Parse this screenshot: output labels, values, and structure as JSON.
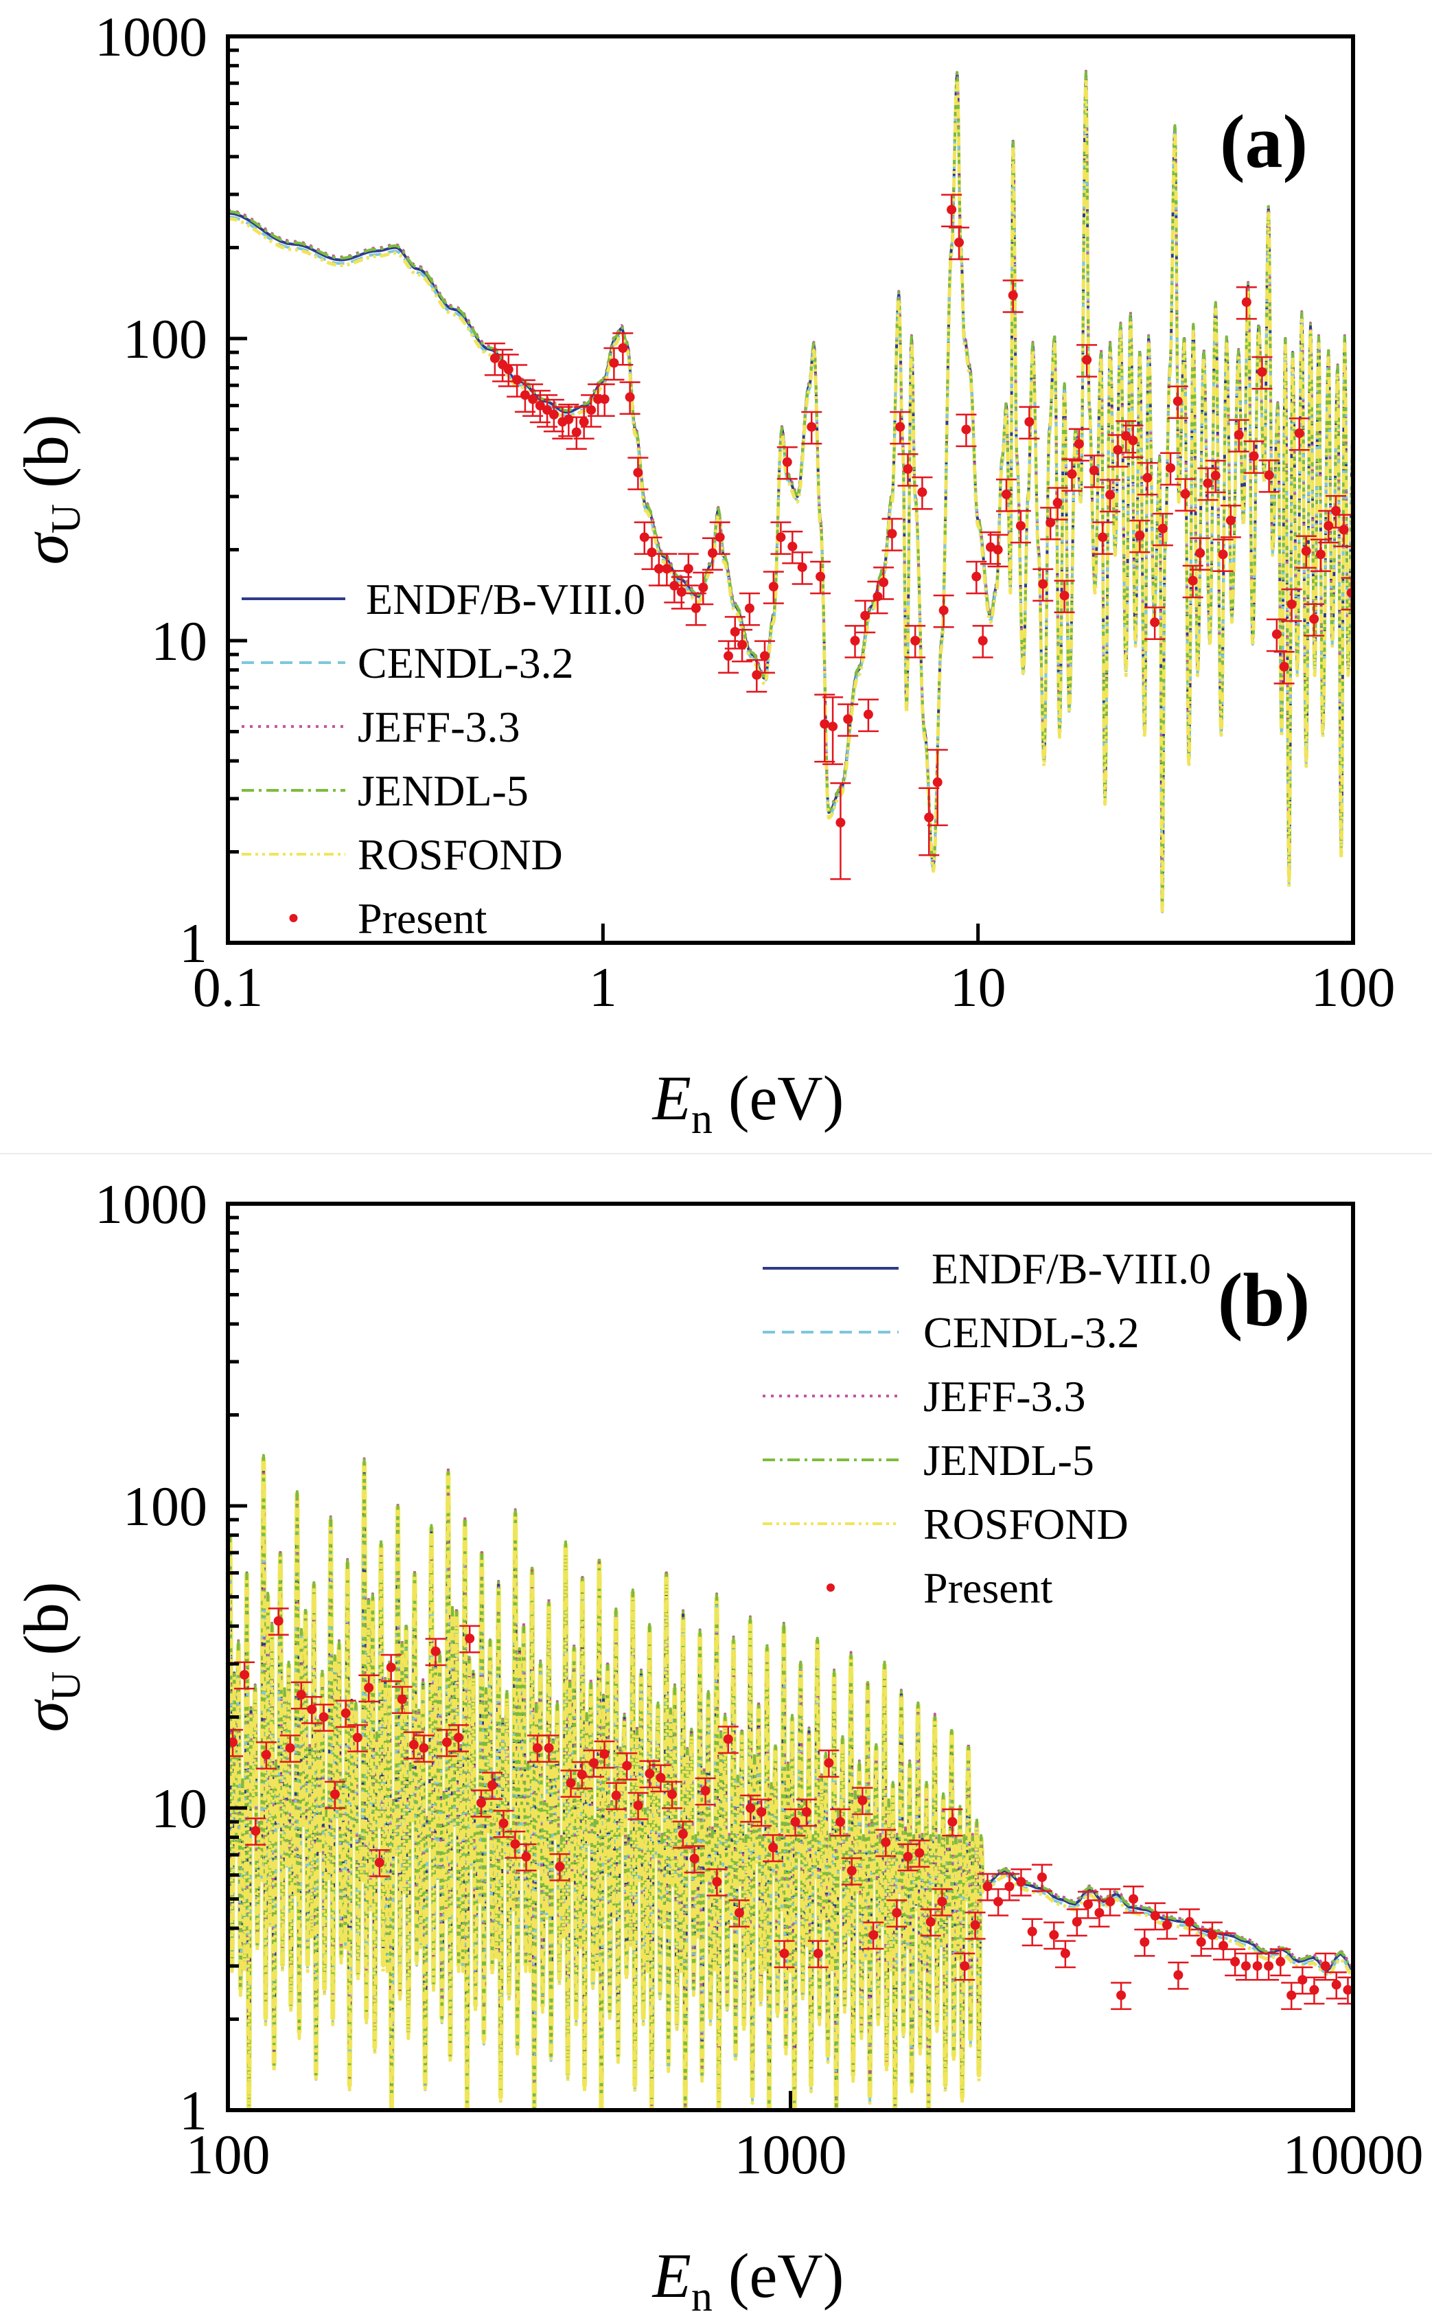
{
  "figure": {
    "panels": [
      "a",
      "b"
    ]
  },
  "chart_data": [
    {
      "type": "line",
      "panel_tag": "(a)",
      "xscale": "log",
      "yscale": "log",
      "xlim": [
        0.1,
        100
      ],
      "ylim": [
        1,
        1000
      ],
      "xticks": [
        0.1,
        1,
        10,
        100
      ],
      "xtick_labels": [
        "0.1",
        "1",
        "10",
        "100"
      ],
      "yticks": [
        1,
        10,
        100,
        1000
      ],
      "ytick_labels": [
        "1",
        "10",
        "100",
        "1000"
      ],
      "xlabel": {
        "main": "E",
        "sub": "n",
        "unit": " (eV)"
      },
      "ylabel": {
        "main": "σ",
        "sub": "U",
        "unit": " (b)"
      },
      "legend": {
        "position": "lower-left",
        "entries": [
          {
            "label": "ENDF/B-VIII.0",
            "style": "solid",
            "color": "#2e3a8c"
          },
          {
            "label": "CENDL-3.2",
            "style": "dashed",
            "color": "#7cc8dc"
          },
          {
            "label": "JEFF-3.3",
            "style": "dotted",
            "color": "#c4569c"
          },
          {
            "label": "JENDL-5",
            "style": "dashdot",
            "color": "#7cbc3c"
          },
          {
            "label": "ROSFOND",
            "style": "dashdotdot",
            "color": "#f2e45a"
          },
          {
            "label": "Present",
            "style": "marker",
            "color": "#e3151d"
          }
        ]
      },
      "library_curve": {
        "x": [
          0.1,
          0.15,
          0.2,
          0.25,
          0.28,
          0.32,
          0.4,
          0.5,
          0.6,
          0.7,
          0.8,
          0.9,
          1.0,
          1.08,
          1.12,
          1.16,
          1.22,
          1.3,
          1.45,
          1.6,
          1.8,
          1.95,
          2.03,
          2.1,
          2.25,
          2.5,
          2.7,
          2.85,
          3.0,
          3.1,
          3.3,
          3.55,
          3.65,
          3.8,
          4.0,
          4.3,
          4.8,
          5.2,
          5.6,
          5.9,
          6.15,
          6.3,
          6.45,
          6.65,
          6.8,
          7.2,
          7.6,
          8.0,
          8.5,
          8.8,
          9.0,
          9.2,
          9.5,
          10,
          10.8,
          11.2,
          11.6,
          11.9,
          12.2,
          12.4,
          12.7,
          13.2,
          13.6,
          14,
          14.5,
          15,
          15.5,
          16,
          16.5,
          17,
          17.5,
          18.2,
          18.8,
          19.4,
          19.8,
          20.5,
          21.3,
          21.8,
          22.5,
          23.2,
          24,
          24.8,
          25.5,
          26.3,
          27,
          27.8,
          28.5,
          29.5,
          30.5,
          31,
          31.5,
          32.5,
          33.5,
          34.3,
          35.5,
          36.5,
          37.5,
          38.5,
          40,
          41.5,
          43,
          44.5,
          46,
          47.5,
          49.5,
          51,
          52.5,
          54,
          56,
          58,
          59.5,
          61,
          63,
          64.5,
          66,
          67.5,
          69,
          71,
          73,
          75,
          77,
          79,
          81,
          83,
          86,
          88,
          91,
          93,
          95,
          97,
          100
        ],
        "y": [
          260,
          205,
          182,
          195,
          200,
          170,
          125,
          92,
          72,
          62,
          57,
          60,
          72,
          100,
          108,
          95,
          50,
          28,
          19,
          16,
          14,
          18,
          27,
          19,
          13,
          9,
          7.5,
          12,
          50,
          35,
          30,
          70,
          95,
          25,
          2.7,
          3.2,
          8,
          13,
          17,
          30,
          140,
          45,
          6,
          100,
          30,
          5,
          1.8,
          10,
          200,
          750,
          200,
          100,
          80,
          25,
          12,
          15,
          40,
          60,
          15,
          450,
          40,
          8,
          30,
          95,
          20,
          4,
          50,
          100,
          5,
          70,
          6,
          50,
          30,
          750,
          60,
          15,
          90,
          3,
          95,
          20,
          110,
          8,
          120,
          10,
          90,
          5,
          100,
          12,
          40,
          1.3,
          20,
          80,
          500,
          30,
          100,
          4,
          110,
          8,
          90,
          10,
          130,
          5,
          100,
          12,
          90,
          25,
          150,
          10,
          110,
          35,
          270,
          20,
          60,
          5,
          100,
          1.6,
          90,
          8,
          120,
          4,
          110,
          8,
          100,
          5,
          90,
          10,
          80,
          2,
          100,
          8,
          50
        ]
      },
      "present": {
        "x": [
          0.515,
          0.54,
          0.56,
          0.59,
          0.62,
          0.65,
          0.68,
          0.71,
          0.74,
          0.78,
          0.81,
          0.85,
          0.89,
          0.93,
          0.97,
          1.01,
          1.07,
          1.13,
          1.18,
          1.24,
          1.29,
          1.35,
          1.41,
          1.48,
          1.55,
          1.62,
          1.69,
          1.77,
          1.85,
          1.96,
          2.05,
          2.16,
          2.25,
          2.35,
          2.46,
          2.57,
          2.7,
          2.85,
          2.98,
          3.1,
          3.2,
          3.4,
          3.6,
          3.8,
          3.9,
          4.1,
          4.3,
          4.5,
          4.7,
          5.0,
          5.1,
          5.4,
          5.6,
          5.9,
          6.2,
          6.5,
          6.8,
          7.1,
          7.4,
          7.8,
          8.1,
          8.5,
          8.9,
          9.3,
          9.9,
          10.3,
          10.8,
          11.3,
          11.9,
          12.4,
          13.0,
          13.7,
          14.9,
          15.6,
          16.3,
          17.0,
          17.8,
          18.6,
          19.5,
          20.4,
          21.5,
          22.5,
          23.6,
          24.8,
          25.9,
          27.0,
          28.3,
          29.6,
          31.1,
          32.6,
          34.1,
          35.7,
          37.4,
          39.1,
          41,
          43,
          45,
          47.2,
          49.6,
          52,
          54.4,
          57.2,
          59.7,
          62.6,
          65.5,
          68.6,
          71.9,
          75,
          78.7,
          82,
          86,
          90,
          94.5,
          99
        ],
        "y": [
          86,
          82,
          79,
          73,
          65,
          63,
          60,
          58,
          56,
          53,
          54,
          49,
          53,
          58,
          63,
          63,
          83,
          93,
          64,
          36,
          22,
          19.6,
          17.3,
          17.3,
          15.2,
          14.5,
          17.3,
          12.8,
          15,
          19.5,
          22,
          8.9,
          10.7,
          9.7,
          12.8,
          7.7,
          8.9,
          15.1,
          22,
          39,
          20.5,
          17.5,
          51,
          16.3,
          5.3,
          5.2,
          2.5,
          5.5,
          10,
          12.1,
          5.7,
          14,
          15.6,
          22.6,
          51,
          37,
          10,
          31,
          2.6,
          3.4,
          12.6,
          267,
          208,
          50,
          16.3,
          10,
          20.4,
          20,
          30.5,
          139,
          24,
          53,
          15.4,
          24.6,
          28.6,
          14.1,
          35.6,
          44.8,
          85,
          36.6,
          22,
          30.4,
          42.8,
          47.6,
          46,
          22.3,
          34.6,
          11.5,
          23.5,
          37.3,
          62,
          30.6,
          15.8,
          19.5,
          33.2,
          35.2,
          19.3,
          25,
          48,
          132,
          40.8,
          77.5,
          35.3,
          10.5,
          8.2,
          13.2,
          48.6,
          19.8,
          11.8,
          19.3,
          24,
          26.9,
          23.3,
          14.4
        ],
        "rel_error": 0.12,
        "rel_error_overrides": {
          "4.1": 0.25,
          "4.3": 0.35,
          "3.9": 0.25,
          "7.4": 0.25,
          "7.8": 0.28
        }
      }
    },
    {
      "type": "line",
      "panel_tag": "(b)",
      "xscale": "log",
      "yscale": "log",
      "xlim": [
        100,
        10000
      ],
      "ylim": [
        1,
        1000
      ],
      "xticks": [
        100,
        1000,
        10000
      ],
      "xtick_labels": [
        "100",
        "1000",
        "10000"
      ],
      "yticks": [
        1,
        10,
        100,
        1000
      ],
      "ytick_labels": [
        "1",
        "10",
        "100",
        "1000"
      ],
      "xlabel": {
        "main": "E",
        "sub": "n",
        "unit": " (eV)"
      },
      "ylabel": {
        "main": "σ",
        "sub": "U",
        "unit": " (b)"
      },
      "legend": {
        "position": "upper-right",
        "entries": [
          {
            "label": "ENDF/B-VIII.0",
            "style": "solid",
            "color": "#2e3a8c"
          },
          {
            "label": "CENDL-3.2",
            "style": "dashed",
            "color": "#7cc8dc"
          },
          {
            "label": "JEFF-3.3",
            "style": "dotted",
            "color": "#c4569c"
          },
          {
            "label": "JENDL-5",
            "style": "dashdot",
            "color": "#7cbc3c"
          },
          {
            "label": "ROSFOND",
            "style": "dashdotdot",
            "color": "#f2e45a"
          },
          {
            "label": "Present",
            "style": "marker",
            "color": "#e3151d"
          }
        ]
      },
      "resonance_forest": {
        "x_range": [
          100,
          2200
        ],
        "peaks": [
          80,
          35,
          60,
          25,
          145,
          40,
          70,
          30,
          110,
          45,
          55,
          28,
          90,
          35,
          65,
          22,
          140,
          50,
          75,
          30,
          100,
          40,
          60,
          26,
          85,
          32,
          130,
          45,
          90,
          28,
          70,
          36,
          55,
          24,
          95,
          40,
          62,
          30,
          48,
          22,
          75,
          34,
          58,
          26,
          66,
          30,
          45,
          20,
          52,
          28,
          40,
          22,
          60,
          25,
          44,
          18,
          38,
          24,
          50,
          20,
          36,
          18,
          42,
          22,
          34,
          16,
          40,
          20,
          30,
          18,
          36,
          15,
          28,
          17,
          32,
          14,
          26,
          16,
          30,
          12,
          24,
          14,
          22,
          12,
          20,
          11,
          18,
          10,
          16,
          9
        ],
        "valleys": [
          3,
          2.5,
          1,
          3.5,
          2,
          1.4,
          3,
          2.2,
          1.8,
          3,
          1.3,
          2.5,
          2,
          3.2,
          1.2,
          2.8,
          2,
          1.6,
          3,
          1,
          2.4,
          1.8,
          3.1,
          1.2,
          2.6,
          2,
          1.5,
          3,
          1,
          2.2,
          1.7,
          2.9,
          1.1,
          2.4,
          1.6,
          3,
          1,
          2.2,
          1.5,
          2.7,
          1.3,
          2,
          1.2,
          2.6,
          1,
          2.1,
          1.5,
          2.8,
          1.2,
          2,
          1,
          2.4,
          1.4,
          1.9,
          1,
          2.5,
          1.3,
          2,
          1,
          2.2,
          1.5,
          1.9,
          1.1,
          2.3,
          1,
          2.1,
          1.6,
          1,
          2.4,
          1.2,
          2,
          1.5,
          1,
          2.2,
          1.3,
          1.8,
          1.1,
          2,
          1.4,
          1,
          1.8,
          1.2,
          1.6,
          1,
          1.9,
          1.2,
          1.5,
          1.1,
          1.7,
          1.3
        ]
      },
      "smooth_tail": {
        "x": [
          2200,
          2400,
          2600,
          2800,
          3000,
          3200,
          3400,
          3600,
          3800,
          4000,
          4300,
          4600,
          5000,
          5500,
          6000,
          6500,
          7000,
          7500,
          8000,
          8500,
          9000,
          9500,
          10000
        ],
        "y": [
          5.5,
          6.2,
          5.6,
          5.4,
          5,
          4.8,
          5.4,
          4.9,
          5.2,
          4.7,
          4.6,
          4.3,
          4.2,
          3.9,
          3.8,
          3.6,
          3.3,
          3.4,
          3.1,
          3.2,
          2.9,
          3.3,
          2.9
        ]
      },
      "present": {
        "x": [
          102,
          107,
          112,
          117,
          123,
          129,
          135,
          141,
          148,
          155,
          162,
          170,
          178,
          186,
          195,
          204,
          214,
          223,
          234,
          245,
          257,
          269,
          282,
          295,
          309,
          324,
          339,
          355,
          372,
          389,
          407,
          426,
          447,
          467,
          490,
          512,
          536,
          562,
          588,
          616,
          644,
          675,
          706,
          740,
          775,
          811,
          849,
          888,
          931,
          975,
          1020,
          1068,
          1120,
          1170,
          1226,
          1285,
          1343,
          1404,
          1477,
          1545,
          1617,
          1695,
          1775,
          1860,
          1940,
          2040,
          2130,
          2240,
          2340,
          2450,
          2570,
          2690,
          2800,
          2940,
          3080,
          3230,
          3380,
          3540,
          3700,
          3870,
          4070,
          4260,
          4450,
          4670,
          4890,
          5120,
          5370,
          5620,
          5880,
          6170,
          6450,
          6760,
          7080,
          7430,
          7770,
          8130,
          8530,
          8930,
          9340,
          9790
        ],
        "y": [
          16.5,
          27.6,
          8.4,
          15,
          41.6,
          15.8,
          23.7,
          21.2,
          20,
          11.1,
          20.6,
          17.1,
          25,
          6.6,
          29.2,
          22.9,
          16.2,
          15.8,
          33,
          16.5,
          17.1,
          36.4,
          10.4,
          11.9,
          8.9,
          7.6,
          6.9,
          15.8,
          15.8,
          6.4,
          12.1,
          12.9,
          14.1,
          15.1,
          11,
          13.8,
          10.2,
          13,
          12.6,
          11.1,
          8.2,
          6.8,
          11.4,
          5.7,
          16.9,
          4.5,
          10,
          9.7,
          7.4,
          3.3,
          9,
          9.7,
          3.3,
          14.1,
          9,
          6.2,
          10.6,
          3.8,
          7.7,
          4.5,
          6.9,
          7.1,
          4.2,
          4.9,
          9,
          3,
          4.1,
          5.5,
          4.9,
          5.5,
          5.7,
          3.9,
          5.9,
          3.8,
          3.3,
          4.2,
          4.8,
          4.5,
          4.9,
          2.4,
          5,
          3.6,
          4.4,
          4.1,
          2.8,
          4.2,
          3.6,
          3.8,
          3.5,
          3.1,
          3,
          3,
          3,
          3.1,
          2.4,
          2.7,
          2.5,
          3,
          2.6,
          2.5
        ],
        "rel_error": 0.1
      }
    }
  ]
}
